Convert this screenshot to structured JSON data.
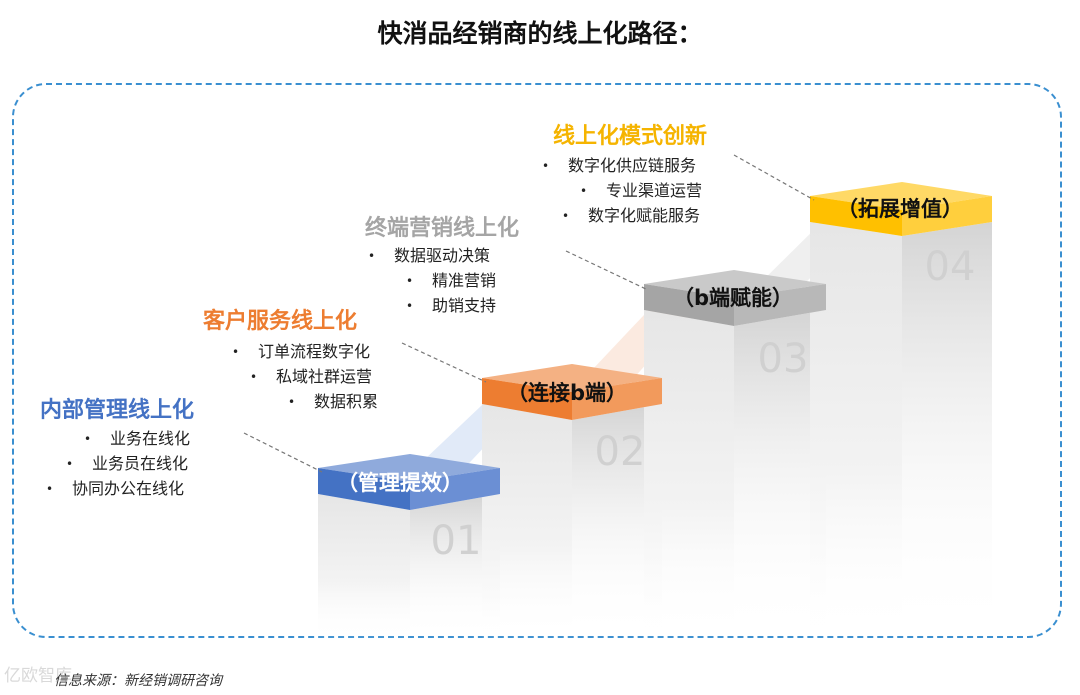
{
  "title": "快消品经销商的线上化路径：",
  "steps": [
    {
      "label": "（管理提效）",
      "number": "01",
      "color": "#4472c4",
      "category": "内部管理线上化",
      "category_color": "#4472c4",
      "items": [
        "业务在线化",
        "业务员在线化",
        "协同办公在线化"
      ]
    },
    {
      "label": "（连接b端）",
      "number": "02",
      "color": "#ed7d31",
      "category": "客户服务线上化",
      "category_color": "#ed7d31",
      "items": [
        "订单流程数字化",
        "私域社群运营",
        "数据积累"
      ]
    },
    {
      "label": "（b端赋能）",
      "number": "03",
      "color": "#a5a5a5",
      "category": "终端营销线上化",
      "category_color": "#a5a5a5",
      "items": [
        "数据驱动决策",
        "精准营销",
        "助销支持"
      ]
    },
    {
      "label": "（拓展增值）",
      "number": "04",
      "color": "#ffc000",
      "category": "线上化模式创新",
      "category_color": "#f5b400",
      "items": [
        "数字化供应链服务",
        "专业渠道运营",
        "数字化赋能服务"
      ]
    }
  ],
  "bullet": "•",
  "source": "信息来源：新经销调研咨询",
  "watermark": "亿欧智库"
}
